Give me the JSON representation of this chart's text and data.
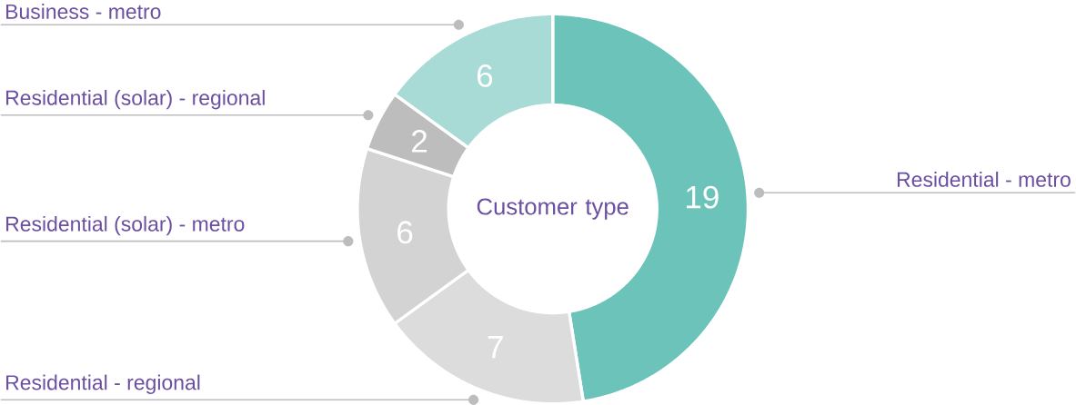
{
  "chart_data": {
    "type": "donut",
    "title": "Customer type",
    "categories": [
      "Residential - metro",
      "Residential - regional",
      "Residential (solar) - metro",
      "Residential (solar) - regional",
      "Business - metro"
    ],
    "values": [
      19,
      7,
      6,
      2,
      6
    ],
    "colors": [
      "#6cc3b9",
      "#dcdcdc",
      "#d3d3d3",
      "#bdbdbd",
      "#a8dbd5"
    ],
    "data_labels": true
  }
}
